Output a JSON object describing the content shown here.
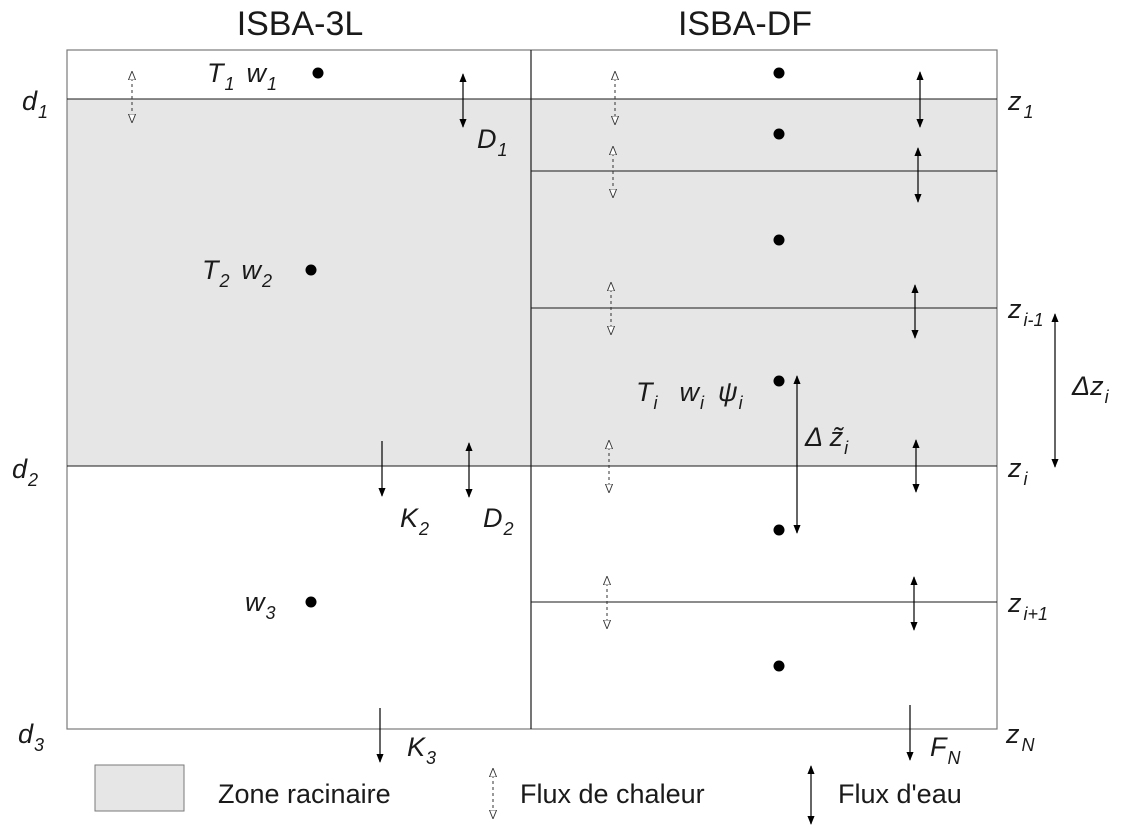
{
  "titles": {
    "left": "ISBA-3L",
    "right": "ISBA-DF"
  },
  "colors": {
    "root_zone": "#e6e6e6",
    "frame": "#7a7a7a",
    "ink": "#000000"
  },
  "left_depth_labels": [
    {
      "base": "d",
      "sub": "1"
    },
    {
      "base": "d",
      "sub": "2"
    },
    {
      "base": "d",
      "sub": "3"
    }
  ],
  "right_depth_labels": [
    {
      "base": "z",
      "sub": "1"
    },
    {
      "base": "z",
      "sub": "i-1"
    },
    {
      "base": "z",
      "sub": "i"
    },
    {
      "base": "z",
      "sub": "i+1"
    },
    {
      "base": "z",
      "sub": "N"
    }
  ],
  "left_node_labels": [
    {
      "parts": [
        {
          "base": "T",
          "sub": "1"
        },
        {
          "base": "w",
          "sub": "1"
        }
      ]
    },
    {
      "parts": [
        {
          "base": "T",
          "sub": "2"
        },
        {
          "base": "w",
          "sub": "2"
        }
      ]
    },
    {
      "parts": [
        {
          "base": "w",
          "sub": "3"
        }
      ]
    }
  ],
  "left_flux_labels": [
    {
      "base": "D",
      "sub": "1"
    },
    {
      "base": "K",
      "sub": "2"
    },
    {
      "base": "D",
      "sub": "2"
    },
    {
      "base": "K",
      "sub": "3"
    }
  ],
  "right_node_label": {
    "parts": [
      {
        "base": "T",
        "sub": "i"
      },
      {
        "base": "w",
        "sub": "i"
      },
      {
        "base": "ψ",
        "sub": "i"
      }
    ]
  },
  "right_flux_label": {
    "base": "F",
    "sub": "N"
  },
  "dz_label": {
    "base": "Δz",
    "sub": "i"
  },
  "dz_tilde_label": {
    "base": "Δ z̃",
    "sub": "i"
  },
  "legend": {
    "root_zone": "Zone racinaire",
    "heat_flux": "Flux de chaleur",
    "water_flux": "Flux d'eau"
  }
}
